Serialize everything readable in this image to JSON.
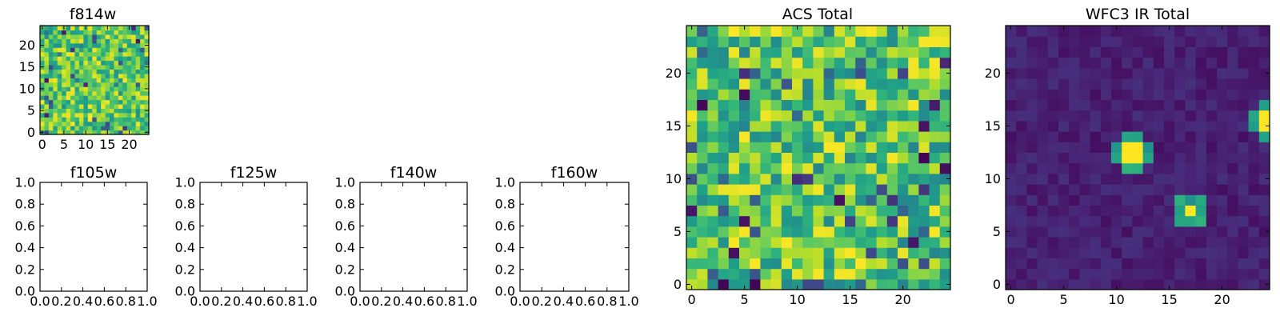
{
  "chart_data": [
    {
      "type": "heatmap",
      "title": "f814w",
      "colormap": "viridis",
      "xlim": [
        -0.5,
        24.5
      ],
      "ylim": [
        -0.5,
        24.5
      ],
      "xticks": [
        "0",
        "5",
        "10",
        "15",
        "20"
      ],
      "yticks": [
        "0",
        "5",
        "10",
        "15",
        "20"
      ],
      "grid": [
        25,
        25
      ],
      "content": "uniform random noise, values spanning the full colormap (mostly green-yellow)"
    },
    {
      "type": "heatmap",
      "title": "f105w",
      "empty": true,
      "xlim": [
        0.0,
        1.0
      ],
      "ylim": [
        0.0,
        1.0
      ],
      "xticks": [
        "0.0",
        "0.2",
        "0.4",
        "0.6",
        "0.8",
        "1.0"
      ],
      "yticks": [
        "0.0",
        "0.2",
        "0.4",
        "0.6",
        "0.8",
        "1.0"
      ]
    },
    {
      "type": "heatmap",
      "title": "f125w",
      "empty": true,
      "xlim": [
        0.0,
        1.0
      ],
      "ylim": [
        0.0,
        1.0
      ],
      "xticks": [
        "0.0",
        "0.2",
        "0.4",
        "0.6",
        "0.8",
        "1.0"
      ],
      "yticks": [
        "0.0",
        "0.2",
        "0.4",
        "0.6",
        "0.8",
        "1.0"
      ]
    },
    {
      "type": "heatmap",
      "title": "f140w",
      "empty": true,
      "xlim": [
        0.0,
        1.0
      ],
      "ylim": [
        0.0,
        1.0
      ],
      "xticks": [
        "0.0",
        "0.2",
        "0.4",
        "0.6",
        "0.8",
        "1.0"
      ],
      "yticks": [
        "0.0",
        "0.2",
        "0.4",
        "0.6",
        "0.8",
        "1.0"
      ]
    },
    {
      "type": "heatmap",
      "title": "f160w",
      "empty": true,
      "xlim": [
        0.0,
        1.0
      ],
      "ylim": [
        0.0,
        1.0
      ],
      "xticks": [
        "0.0",
        "0.2",
        "0.4",
        "0.6",
        "0.8",
        "1.0"
      ],
      "yticks": [
        "0.0",
        "0.2",
        "0.4",
        "0.6",
        "0.8",
        "1.0"
      ]
    },
    {
      "type": "heatmap",
      "title": "ACS Total",
      "colormap": "viridis",
      "xlim": [
        -0.5,
        24.5
      ],
      "ylim": [
        -0.5,
        24.5
      ],
      "xticks": [
        "0",
        "5",
        "10",
        "15",
        "20"
      ],
      "yticks": [
        "0",
        "5",
        "10",
        "15",
        "20"
      ],
      "grid": [
        25,
        25
      ],
      "content": "random noise, mostly mid-to-high values (green-yellow) with scattered dark pixels"
    },
    {
      "type": "heatmap",
      "title": "WFC3 IR Total",
      "colormap": "viridis",
      "xlim": [
        -0.5,
        24.5
      ],
      "ylim": [
        -0.5,
        24.5
      ],
      "xticks": [
        "0",
        "5",
        "10",
        "15",
        "20"
      ],
      "yticks": [
        "0",
        "5",
        "10",
        "15",
        "20"
      ],
      "grid": [
        25,
        25
      ],
      "content": "low-level dark background with bright sources",
      "sources": [
        {
          "x": 11.5,
          "y": 12.5,
          "shape": "2x2 bright core with green halo"
        },
        {
          "x": 17.0,
          "y": 7.0,
          "shape": "single bright pixel with green neighbours"
        },
        {
          "x": 24.0,
          "y": 15.5,
          "shape": "bright patch at right edge"
        }
      ]
    }
  ]
}
